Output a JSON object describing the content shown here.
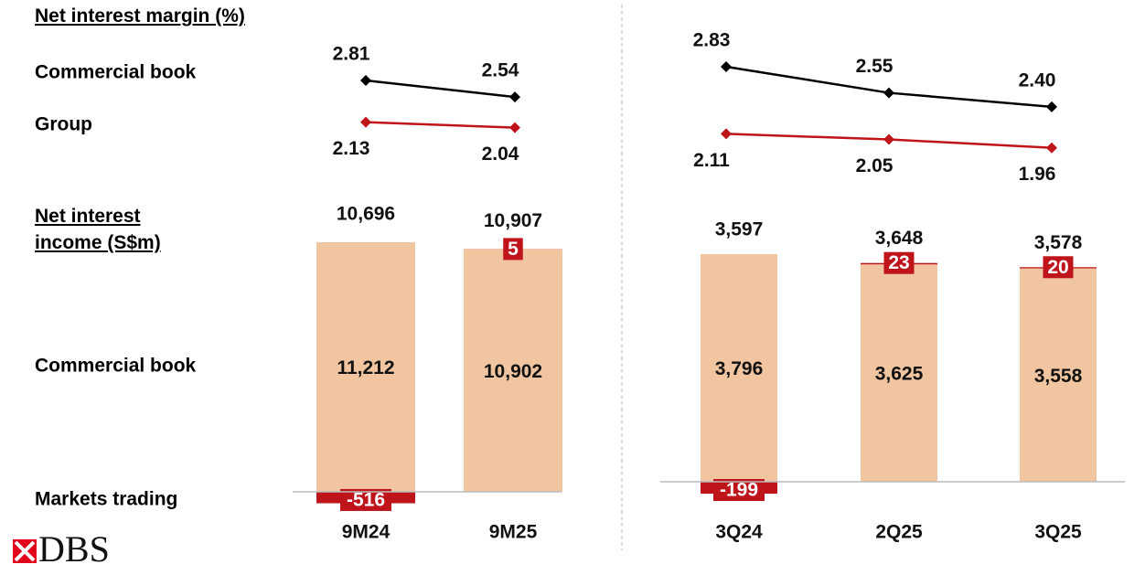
{
  "logo": "DBS",
  "chart_data": [
    {
      "type": "line",
      "title": "Net interest margin (%)",
      "ylim": [
        1.8,
        3.0
      ],
      "series": [
        {
          "name": "Commercial book",
          "color": "#000000",
          "values": [
            2.81,
            2.54
          ],
          "value_labels": [
            "2.81",
            "2.54"
          ]
        },
        {
          "name": "Group",
          "color": "#c0141b",
          "values": [
            2.13,
            2.04
          ],
          "value_labels": [
            "2.13",
            "2.04"
          ]
        }
      ]
    },
    {
      "type": "bar",
      "stacked": true,
      "title": "Net interest income (S$m)",
      "ylim": [
        -1000,
        12000
      ],
      "categories": [
        "9M24",
        "9M25"
      ],
      "totals": [
        10696,
        10907
      ],
      "total_labels": [
        "10,696",
        "10,907"
      ],
      "series": [
        {
          "name": "Commercial book",
          "color": "#f0c5a0",
          "values": [
            11212,
            10902
          ],
          "value_labels": [
            "11,212",
            "10,902"
          ]
        },
        {
          "name": "Markets trading",
          "color": "#c0141b",
          "values": [
            -516,
            5
          ],
          "value_labels": [
            "-516",
            "5"
          ]
        }
      ]
    },
    {
      "type": "line",
      "ylim": [
        1.8,
        3.0
      ],
      "series": [
        {
          "color": "#000000",
          "values": [
            2.83,
            2.55,
            2.4
          ],
          "value_labels": [
            "2.83",
            "2.55",
            "2.40"
          ]
        },
        {
          "color": "#c0141b",
          "values": [
            2.11,
            2.05,
            1.96
          ],
          "value_labels": [
            "2.11",
            "2.05",
            "1.96"
          ]
        }
      ]
    },
    {
      "type": "bar",
      "stacked": true,
      "ylim": [
        -500,
        4000
      ],
      "categories": [
        "3Q24",
        "2Q25",
        "3Q25"
      ],
      "totals": [
        3597,
        3648,
        3578
      ],
      "total_labels": [
        "3,597",
        "3,648",
        "3,578"
      ],
      "series": [
        {
          "color": "#f0c5a0",
          "values": [
            3796,
            3625,
            3558
          ],
          "value_labels": [
            "3,796",
            "3,625",
            "3,558"
          ]
        },
        {
          "color": "#c0141b",
          "values": [
            -199,
            23,
            20
          ],
          "value_labels": [
            "-199",
            "23",
            "20"
          ]
        }
      ]
    }
  ]
}
